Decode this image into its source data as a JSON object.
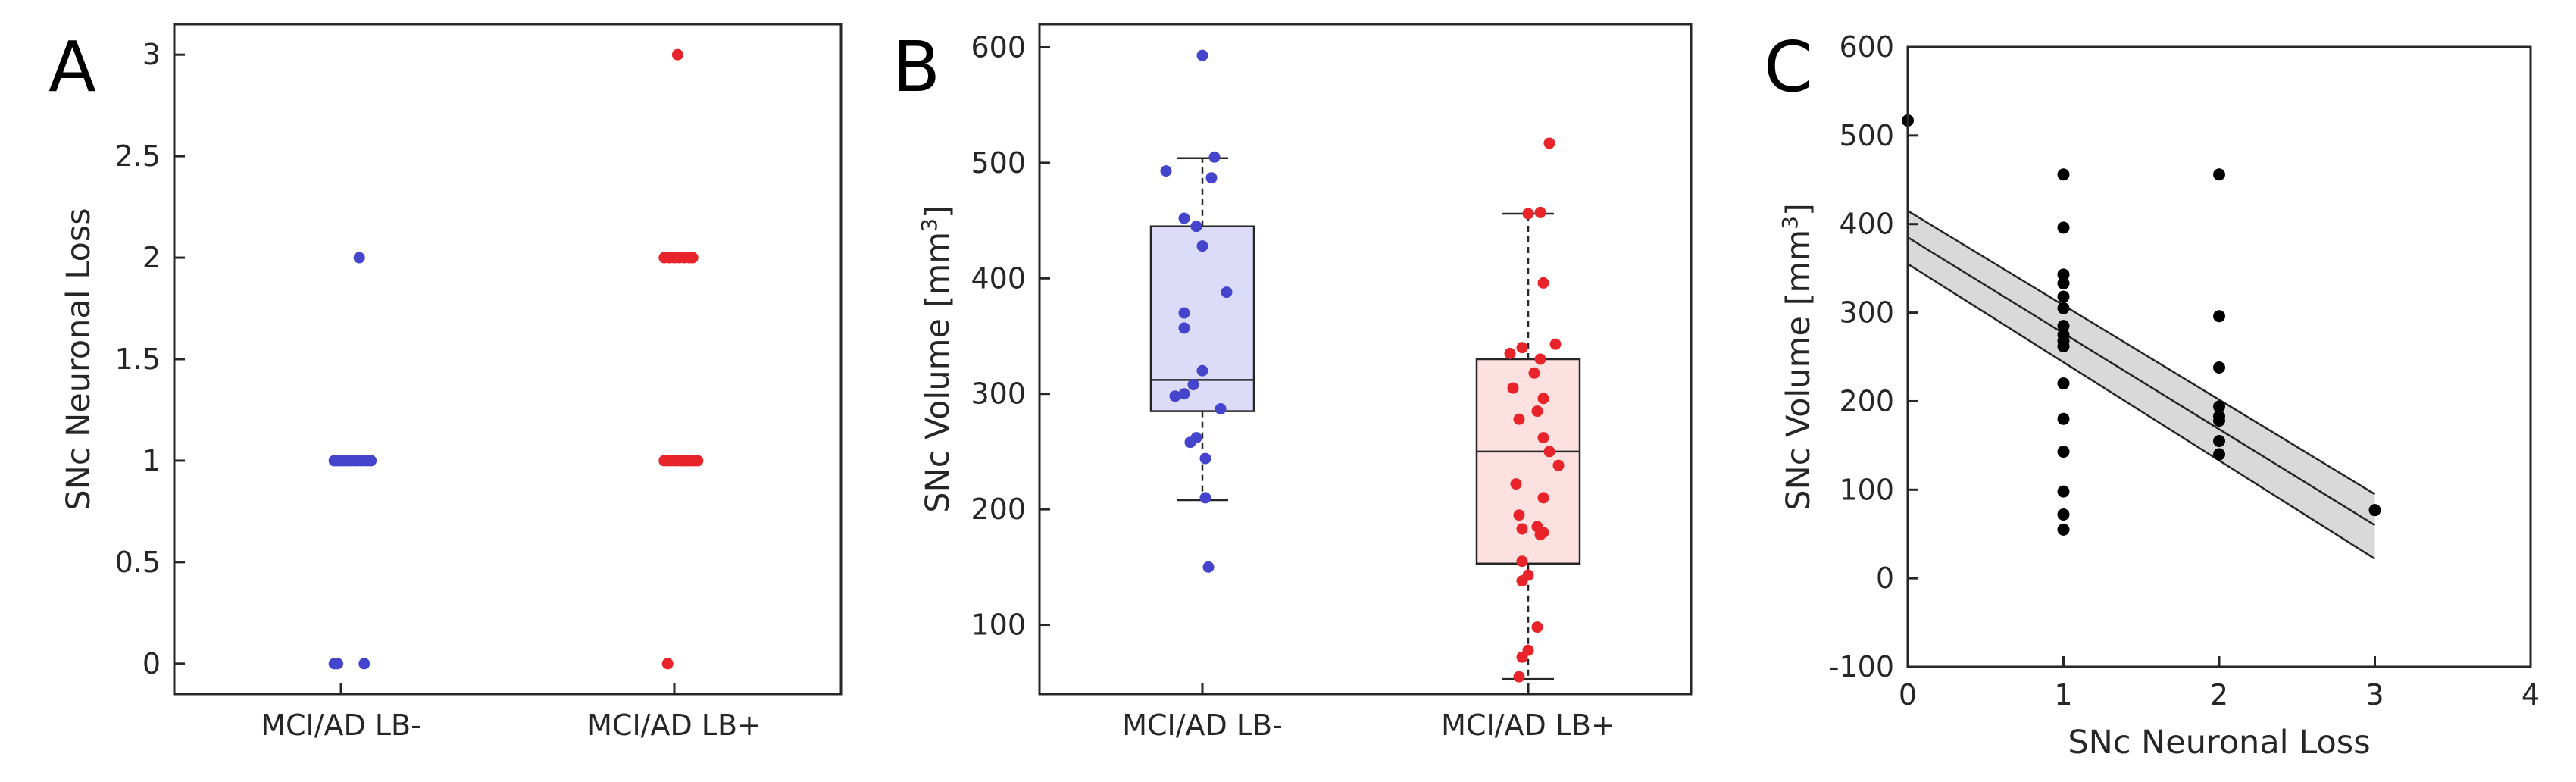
{
  "chart_data": [
    {
      "panel": "A",
      "type": "scatter",
      "title": "",
      "xlabel": "",
      "ylabel": "SNc Neuronal Loss",
      "categories": [
        "MCI/AD LB-",
        "MCI/AD LB+"
      ],
      "ylim": [
        -0.15,
        3.15
      ],
      "yticks": [
        "0",
        "0.5",
        "1",
        "1.5",
        "2",
        "2.5",
        "3"
      ],
      "series": [
        {
          "name": "MCI/AD LB-",
          "color": "#4444cc",
          "points": [
            [
              -0.04,
              0
            ],
            [
              -0.02,
              0
            ],
            [
              0.14,
              0
            ],
            [
              -0.04,
              1
            ],
            [
              -0.02,
              1
            ],
            [
              0.0,
              1
            ],
            [
              0.02,
              1
            ],
            [
              0.04,
              1
            ],
            [
              0.06,
              1
            ],
            [
              0.08,
              1
            ],
            [
              0.1,
              1
            ],
            [
              0.12,
              1
            ],
            [
              0.14,
              1
            ],
            [
              0.16,
              1
            ],
            [
              0.18,
              1
            ],
            [
              0.11,
              2
            ]
          ]
        },
        {
          "name": "MCI/AD LB+",
          "color": "#e8242a",
          "points": [
            [
              -0.04,
              0
            ],
            [
              -0.06,
              1
            ],
            [
              -0.04,
              1
            ],
            [
              -0.02,
              1
            ],
            [
              0.0,
              1
            ],
            [
              0.02,
              1
            ],
            [
              0.04,
              1
            ],
            [
              0.06,
              1
            ],
            [
              0.08,
              1
            ],
            [
              0.1,
              1
            ],
            [
              0.12,
              1
            ],
            [
              0.14,
              1
            ],
            [
              -0.06,
              2
            ],
            [
              -0.03,
              2
            ],
            [
              0.0,
              2
            ],
            [
              0.03,
              2
            ],
            [
              0.06,
              2
            ],
            [
              0.09,
              2
            ],
            [
              0.11,
              2
            ],
            [
              0.02,
              3
            ]
          ]
        }
      ]
    },
    {
      "panel": "B",
      "type": "box",
      "title": "",
      "xlabel": "",
      "ylabel": "SNc Volume [mm³]",
      "ylabel_base": "SNc Volume [mm",
      "ylabel_exp": "3",
      "ylabel_end": "]",
      "categories": [
        "MCI/AD LB-",
        "MCI/AD LB+"
      ],
      "ylim": [
        40,
        620
      ],
      "yticks": [
        "100",
        "200",
        "300",
        "400",
        "500",
        "600"
      ],
      "boxes": [
        {
          "name": "MCI/AD LB-",
          "color": "#4444cc",
          "fill": "#dcdcf8",
          "whisker_low": 208,
          "q1": 285,
          "median": 312,
          "q3": 445,
          "whisker_high": 504,
          "points": [
            [
              0.0,
              593
            ],
            [
              -0.12,
              493
            ],
            [
              0.04,
              505
            ],
            [
              0.03,
              487
            ],
            [
              -0.06,
              452
            ],
            [
              -0.02,
              445
            ],
            [
              0.0,
              428
            ],
            [
              0.08,
              388
            ],
            [
              -0.06,
              370
            ],
            [
              -0.06,
              357
            ],
            [
              0.0,
              320
            ],
            [
              -0.03,
              308
            ],
            [
              -0.06,
              300
            ],
            [
              -0.09,
              298
            ],
            [
              0.06,
              287
            ],
            [
              -0.02,
              262
            ],
            [
              -0.04,
              258
            ],
            [
              0.01,
              244
            ],
            [
              0.01,
              210
            ],
            [
              0.02,
              150
            ]
          ]
        },
        {
          "name": "MCI/AD LB+",
          "color": "#e8242a",
          "fill": "#fde1e1",
          "whisker_low": 53,
          "q1": 153,
          "median": 250,
          "q3": 330,
          "whisker_high": 456,
          "points": [
            [
              0.07,
              517
            ],
            [
              0.0,
              456
            ],
            [
              0.04,
              457
            ],
            [
              0.05,
              396
            ],
            [
              0.09,
              343
            ],
            [
              -0.02,
              340
            ],
            [
              0.04,
              330
            ],
            [
              -0.06,
              335
            ],
            [
              0.02,
              318
            ],
            [
              -0.05,
              305
            ],
            [
              0.05,
              296
            ],
            [
              0.03,
              285
            ],
            [
              -0.03,
              278
            ],
            [
              0.05,
              262
            ],
            [
              0.07,
              250
            ],
            [
              0.1,
              238
            ],
            [
              -0.04,
              222
            ],
            [
              0.05,
              210
            ],
            [
              -0.03,
              195
            ],
            [
              0.03,
              185
            ],
            [
              -0.02,
              183
            ],
            [
              0.05,
              180
            ],
            [
              0.04,
              178
            ],
            [
              -0.02,
              155
            ],
            [
              0.0,
              143
            ],
            [
              -0.02,
              138
            ],
            [
              0.03,
              98
            ],
            [
              0.0,
              78
            ],
            [
              -0.02,
              72
            ],
            [
              -0.03,
              55
            ]
          ]
        }
      ]
    },
    {
      "panel": "C",
      "type": "scatter",
      "title": "",
      "xlabel": "SNc Neuronal Loss",
      "ylabel": "SNc Volume [mm³]",
      "ylabel_base": "SNc Volume [mm",
      "ylabel_exp": "3",
      "ylabel_end": "]",
      "xlim": [
        0,
        4
      ],
      "ylim": [
        -100,
        600
      ],
      "xticks": [
        "0",
        "1",
        "2",
        "3",
        "4"
      ],
      "yticks": [
        "-100",
        "0",
        "100",
        "200",
        "300",
        "400",
        "500",
        "600"
      ],
      "point_color": "#000000",
      "points": [
        [
          0,
          517
        ],
        [
          1,
          456
        ],
        [
          1,
          396
        ],
        [
          1,
          343
        ],
        [
          1,
          333
        ],
        [
          1,
          318
        ],
        [
          1,
          305
        ],
        [
          1,
          285
        ],
        [
          1,
          275
        ],
        [
          1,
          268
        ],
        [
          1,
          262
        ],
        [
          1,
          220
        ],
        [
          1,
          180
        ],
        [
          1,
          143
        ],
        [
          1,
          98
        ],
        [
          1,
          72
        ],
        [
          1,
          55
        ],
        [
          2,
          456
        ],
        [
          2,
          296
        ],
        [
          2,
          238
        ],
        [
          2,
          194
        ],
        [
          2,
          183
        ],
        [
          2,
          178
        ],
        [
          2,
          155
        ],
        [
          2,
          140
        ],
        [
          3,
          77
        ]
      ],
      "fit": {
        "x0": 0,
        "x1": 3,
        "y0": 385,
        "y1": 60
      },
      "ci_upper": {
        "x0": 0,
        "x1": 3,
        "y0": 415,
        "y1": 95
      },
      "ci_lower": {
        "x0": 0,
        "x1": 3,
        "y0": 355,
        "y1": 22
      },
      "ci_color": "#d9d9d9"
    }
  ],
  "panel_labels": [
    "A",
    "B",
    "C"
  ]
}
